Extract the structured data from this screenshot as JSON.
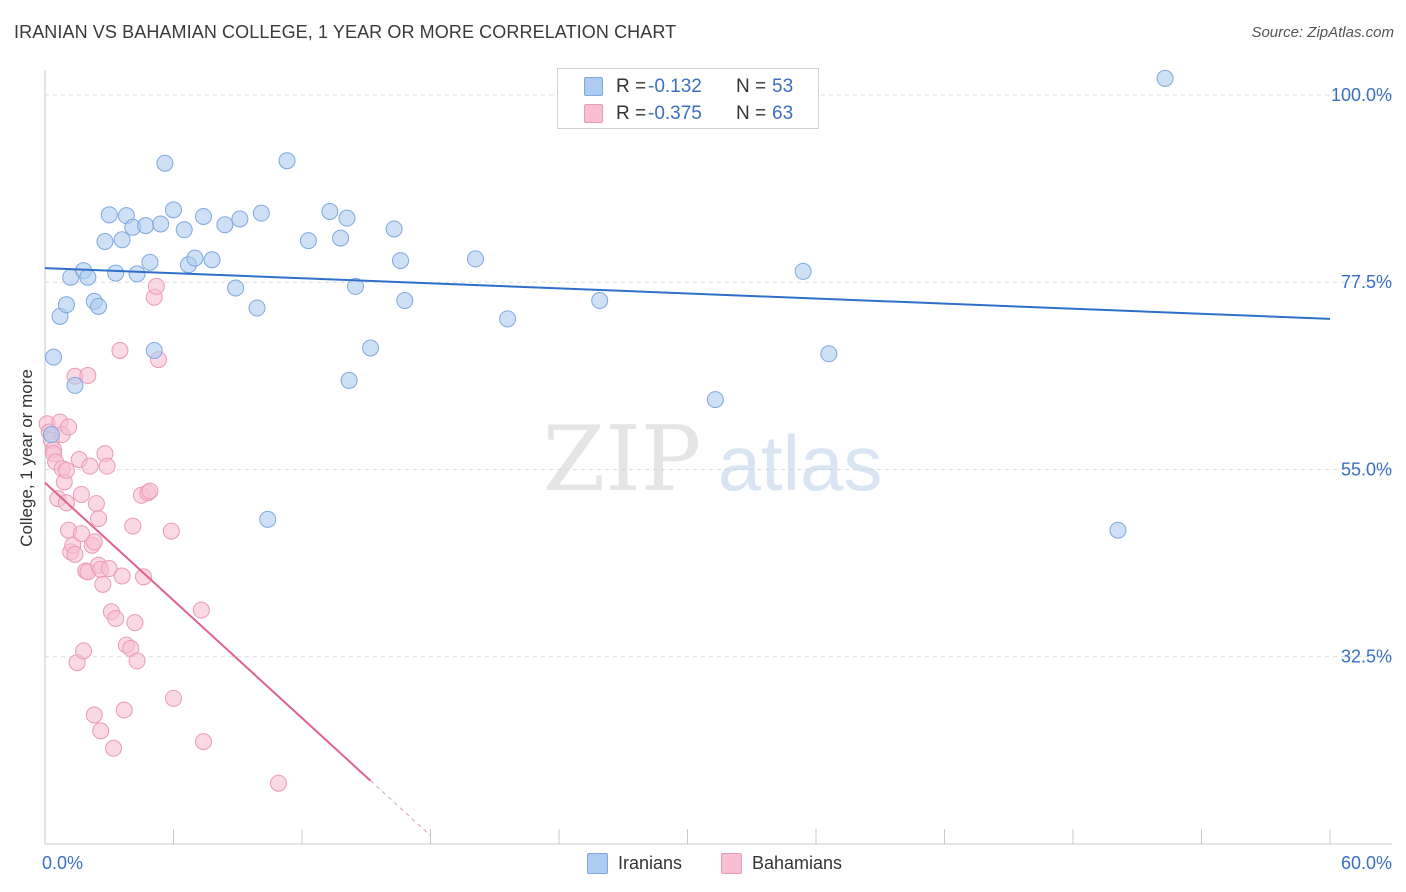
{
  "header": {
    "title": "IRANIAN VS BAHAMIAN COLLEGE, 1 YEAR OR MORE CORRELATION CHART",
    "source": "Source: ZipAtlas.com"
  },
  "watermark": {
    "part1": "ZIP",
    "part2": "atlas"
  },
  "legend": {
    "iranians": {
      "r_label": "R =",
      "r_value": "-0.132",
      "n_label": "N =",
      "n_value": "53"
    },
    "bahamians": {
      "r_label": "R =",
      "r_value": "-0.375",
      "n_label": "N =",
      "n_value": "63"
    }
  },
  "colors": {
    "iranians_fill": "#aecbf0",
    "iranians_stroke": "#7fa8de",
    "iranians_line": "#2f6fca",
    "bahamians_fill": "#f7bfd1",
    "bahamians_stroke": "#eb9ab6",
    "bahamians_line": "#e0628f",
    "tick_text": "#3b6fc4",
    "grid": "#dcdcdc"
  },
  "chart_data": {
    "type": "scatter",
    "title": "IRANIAN VS BAHAMIAN COLLEGE, 1 YEAR OR MORE CORRELATION CHART",
    "xlabel": "",
    "ylabel": "College, 1 year or more",
    "xlim": [
      0,
      60
    ],
    "ylim": [
      10,
      103
    ],
    "x_tick_labels": [
      "0.0%",
      "60.0%"
    ],
    "y_ticks": [
      32.5,
      55.0,
      77.5,
      100.0
    ],
    "y_tick_labels": [
      "32.5%",
      "55.0%",
      "77.5%",
      "100.0%"
    ],
    "grid": true,
    "legend_position": "bottom-center",
    "series": [
      {
        "name": "Iranians",
        "trend": {
          "x": [
            0,
            60
          ],
          "y": [
            79.2,
            73.1
          ]
        },
        "points": [
          [
            0.4,
            68.5
          ],
          [
            0.7,
            73.4
          ],
          [
            1.0,
            74.8
          ],
          [
            1.2,
            78.1
          ],
          [
            1.4,
            65.1
          ],
          [
            1.8,
            78.9
          ],
          [
            2.0,
            78.1
          ],
          [
            2.3,
            75.2
          ],
          [
            2.5,
            74.6
          ],
          [
            2.8,
            82.4
          ],
          [
            3.0,
            85.6
          ],
          [
            3.3,
            78.6
          ],
          [
            3.6,
            82.6
          ],
          [
            3.8,
            85.5
          ],
          [
            4.1,
            84.1
          ],
          [
            4.3,
            78.5
          ],
          [
            4.7,
            84.3
          ],
          [
            4.9,
            79.9
          ],
          [
            5.1,
            69.3
          ],
          [
            5.4,
            84.5
          ],
          [
            5.6,
            91.8
          ],
          [
            6.0,
            86.2
          ],
          [
            6.5,
            83.8
          ],
          [
            6.7,
            79.6
          ],
          [
            7.0,
            80.4
          ],
          [
            7.4,
            85.4
          ],
          [
            7.8,
            80.2
          ],
          [
            8.4,
            84.4
          ],
          [
            8.9,
            76.8
          ],
          [
            9.1,
            85.1
          ],
          [
            9.9,
            74.4
          ],
          [
            10.1,
            85.8
          ],
          [
            10.4,
            49.0
          ],
          [
            11.3,
            92.1
          ],
          [
            12.3,
            82.5
          ],
          [
            13.3,
            86.0
          ],
          [
            13.8,
            82.8
          ],
          [
            14.1,
            85.2
          ],
          [
            14.2,
            65.7
          ],
          [
            14.5,
            77.0
          ],
          [
            15.2,
            69.6
          ],
          [
            16.3,
            83.9
          ],
          [
            16.6,
            80.1
          ],
          [
            16.8,
            75.3
          ],
          [
            20.1,
            80.3
          ],
          [
            21.6,
            73.1
          ],
          [
            25.9,
            75.3
          ],
          [
            31.3,
            63.4
          ],
          [
            35.4,
            78.8
          ],
          [
            36.6,
            68.9
          ],
          [
            50.1,
            47.7
          ],
          [
            52.3,
            102.0
          ],
          [
            0.3,
            59.2
          ]
        ]
      },
      {
        "name": "Bahamians",
        "trend": {
          "x": [
            0,
            15.2
          ],
          "y": [
            53.4,
            17.6
          ]
        },
        "trend_extension": {
          "x": [
            15.2,
            18.0
          ],
          "y": [
            17.6,
            11.0
          ]
        },
        "points": [
          [
            0.1,
            60.5
          ],
          [
            0.2,
            59.5
          ],
          [
            0.3,
            58.5
          ],
          [
            0.4,
            57.4
          ],
          [
            0.4,
            56.9
          ],
          [
            0.5,
            55.9
          ],
          [
            0.6,
            51.5
          ],
          [
            0.7,
            60.7
          ],
          [
            0.8,
            59.2
          ],
          [
            0.8,
            55.1
          ],
          [
            0.9,
            53.5
          ],
          [
            1.0,
            54.9
          ],
          [
            1.0,
            51.0
          ],
          [
            1.1,
            47.7
          ],
          [
            1.2,
            45.1
          ],
          [
            1.3,
            45.9
          ],
          [
            1.4,
            66.2
          ],
          [
            1.4,
            44.8
          ],
          [
            1.5,
            31.8
          ],
          [
            1.6,
            56.2
          ],
          [
            1.7,
            52.0
          ],
          [
            1.7,
            47.3
          ],
          [
            1.8,
            33.2
          ],
          [
            1.9,
            42.8
          ],
          [
            2.0,
            66.3
          ],
          [
            2.0,
            42.7
          ],
          [
            2.1,
            55.4
          ],
          [
            2.2,
            45.9
          ],
          [
            2.3,
            46.3
          ],
          [
            2.3,
            25.5
          ],
          [
            2.4,
            50.9
          ],
          [
            2.5,
            49.1
          ],
          [
            2.5,
            43.5
          ],
          [
            2.6,
            43.0
          ],
          [
            2.6,
            23.6
          ],
          [
            2.7,
            41.2
          ],
          [
            2.8,
            56.9
          ],
          [
            2.9,
            55.4
          ],
          [
            3.0,
            43.1
          ],
          [
            3.1,
            37.9
          ],
          [
            3.2,
            21.5
          ],
          [
            3.3,
            37.1
          ],
          [
            3.5,
            69.3
          ],
          [
            3.6,
            42.2
          ],
          [
            3.7,
            26.1
          ],
          [
            3.8,
            33.9
          ],
          [
            4.0,
            33.5
          ],
          [
            4.1,
            48.2
          ],
          [
            4.2,
            36.6
          ],
          [
            4.3,
            32.0
          ],
          [
            4.5,
            51.9
          ],
          [
            4.6,
            42.1
          ],
          [
            4.8,
            52.2
          ],
          [
            4.9,
            52.4
          ],
          [
            5.1,
            75.7
          ],
          [
            5.2,
            77.0
          ],
          [
            5.3,
            68.2
          ],
          [
            5.9,
            47.6
          ],
          [
            6.0,
            27.5
          ],
          [
            7.3,
            38.1
          ],
          [
            7.4,
            22.3
          ],
          [
            10.9,
            17.3
          ],
          [
            1.1,
            60.1
          ]
        ]
      }
    ]
  },
  "axis": {
    "ylabel": "College, 1 year or more",
    "x_left_label": "0.0%",
    "x_right_label": "60.0%"
  },
  "bottom_legend": {
    "iranians": "Iranians",
    "bahamians": "Bahamians"
  }
}
